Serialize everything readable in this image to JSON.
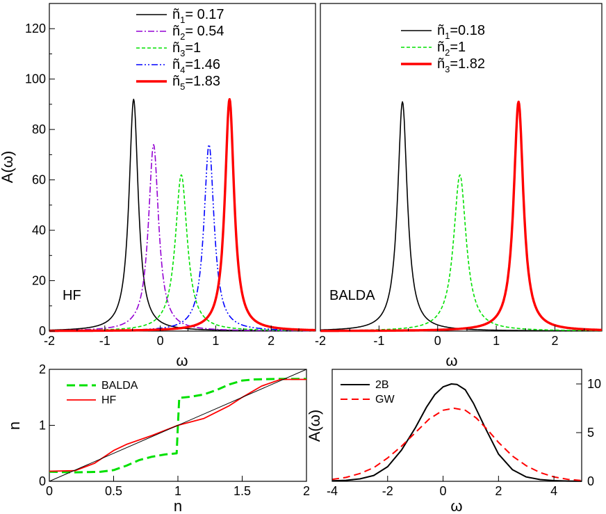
{
  "chart_data": [
    {
      "id": "hf",
      "type": "line",
      "panel_label": "HF",
      "xlabel": "ω",
      "ylabel": "A(ω)",
      "xlim": [
        -2,
        2.8
      ],
      "ylim": [
        0,
        130
      ],
      "xticks": [
        "-2",
        "-1",
        "0",
        "1",
        "2"
      ],
      "yticks": [
        "0",
        "20",
        "40",
        "60",
        "80",
        "100",
        "120"
      ],
      "series": [
        {
          "name": "ñ1= 0.17",
          "base": "ñ",
          "sub": "1",
          "rest": "= 0.17",
          "color": "#000000",
          "dash": "",
          "width": 1.6,
          "peaks": [
            {
              "x0": -0.48,
              "amp": 92,
              "g": 0.1
            }
          ]
        },
        {
          "name": "ñ2= 0.54",
          "base": "ñ",
          "sub": "2",
          "rest": "= 0.54",
          "color": "#9400d3",
          "dash": "9,3,2,3",
          "width": 1.6,
          "peaks": [
            {
              "x0": -0.12,
              "amp": 74,
              "g": 0.11
            }
          ]
        },
        {
          "name": "ñ3=1",
          "base": "ñ",
          "sub": "3",
          "rest": "=1",
          "color": "#00e000",
          "dash": "5,3",
          "width": 1.6,
          "peaks": [
            {
              "x0": 0.38,
              "amp": 62,
              "g": 0.13
            }
          ]
        },
        {
          "name": "ñ4=1.46",
          "base": "ñ",
          "sub": "4",
          "rest": "=1.46",
          "color": "#0000ff",
          "dash": "9,3,2,3,2,3",
          "width": 1.6,
          "peaks": [
            {
              "x0": 0.88,
              "amp": 74,
              "g": 0.11
            }
          ]
        },
        {
          "name": "ñ5=1.83",
          "base": "ñ",
          "sub": "5",
          "rest": "=1.83",
          "color": "#ff0000",
          "dash": "",
          "width": 3.4,
          "peaks": [
            {
              "x0": 1.25,
              "amp": 92,
              "g": 0.1
            }
          ]
        }
      ]
    },
    {
      "id": "balda",
      "type": "line",
      "panel_label": "BALDA",
      "xlabel": "ω",
      "xlim": [
        -2,
        2.8
      ],
      "ylim": [
        0,
        130
      ],
      "xticks": [
        "-2",
        "-1",
        "0",
        "1",
        "2"
      ],
      "series": [
        {
          "name": "ñ1=0.18",
          "base": "ñ",
          "sub": "1",
          "rest": "=0.18",
          "color": "#000000",
          "dash": "",
          "width": 1.6,
          "peaks": [
            {
              "x0": -0.6,
              "amp": 91,
              "g": 0.1
            }
          ]
        },
        {
          "name": "ñ2=1",
          "base": "ñ",
          "sub": "2",
          "rest": "=1",
          "color": "#00e000",
          "dash": "5,3",
          "width": 1.6,
          "peaks": [
            {
              "x0": 0.38,
              "amp": 62,
              "g": 0.13
            }
          ]
        },
        {
          "name": "ñ3=1.82",
          "base": "ñ",
          "sub": "3",
          "rest": "=1.82",
          "color": "#ff0000",
          "dash": "",
          "width": 3.4,
          "peaks": [
            {
              "x0": 1.38,
              "amp": 91,
              "g": 0.1
            }
          ]
        }
      ]
    },
    {
      "id": "density",
      "type": "line",
      "xlabel": "n",
      "ylabel": "n",
      "xlim": [
        0,
        2
      ],
      "ylim": [
        0,
        2
      ],
      "xticks": [
        "0",
        "0.5",
        "1",
        "1.5",
        "2"
      ],
      "yticks": [
        "0",
        "1",
        "2"
      ],
      "series": [
        {
          "name": "BALDA",
          "color": "#00e000",
          "dash": "12,6",
          "width": 3,
          "x": [
            0,
            0.2,
            0.4,
            0.5,
            0.6,
            0.7,
            0.8,
            0.9,
            0.99,
            1.0,
            1.01,
            1.1,
            1.2,
            1.3,
            1.4,
            1.5,
            1.6,
            1.8,
            2.0
          ],
          "y": [
            0.17,
            0.16,
            0.17,
            0.2,
            0.28,
            0.38,
            0.44,
            0.48,
            0.5,
            1.0,
            1.49,
            1.51,
            1.55,
            1.63,
            1.73,
            1.8,
            1.82,
            1.83,
            1.83
          ]
        },
        {
          "name": "HF",
          "color": "#ff0000",
          "dash": "",
          "width": 1.8,
          "x": [
            0,
            0.2,
            0.35,
            0.5,
            0.6,
            0.8,
            1.0,
            1.2,
            1.4,
            1.5,
            1.65,
            1.8,
            2.0
          ],
          "y": [
            0.18,
            0.19,
            0.32,
            0.55,
            0.66,
            0.82,
            1.0,
            1.12,
            1.35,
            1.5,
            1.7,
            1.82,
            1.82
          ]
        },
        {
          "name": "reference",
          "color": "#000000",
          "dash": "",
          "width": 1,
          "x": [
            0,
            2
          ],
          "y": [
            0,
            2
          ]
        }
      ]
    },
    {
      "id": "2b-gw",
      "type": "line",
      "xlabel": "ω",
      "ylabel": "A(ω)",
      "xlim": [
        -4,
        5
      ],
      "ylim": [
        0,
        11.5
      ],
      "xticks": [
        "-4",
        "-2",
        "0",
        "2",
        "4"
      ],
      "yticks": [
        "0",
        "5",
        "10"
      ],
      "series": [
        {
          "name": "2B",
          "color": "#000000",
          "dash": "",
          "width": 2,
          "x": [
            -4,
            -3.5,
            -3,
            -2.5,
            -2,
            -1.5,
            -1,
            -0.6,
            -0.3,
            0,
            0.3,
            0.5,
            0.8,
            1.1,
            1.5,
            2,
            2.5,
            3,
            3.5,
            4,
            4.5,
            5
          ],
          "y": [
            0.05,
            0.1,
            0.25,
            0.6,
            1.5,
            3.2,
            5.5,
            7.6,
            8.9,
            9.7,
            10.0,
            9.95,
            9.4,
            8.0,
            5.6,
            2.8,
            1.2,
            0.45,
            0.18,
            0.07,
            0.03,
            0.01
          ]
        },
        {
          "name": "GW",
          "color": "#ff0000",
          "dash": "10,6",
          "width": 2,
          "x": [
            -4,
            -3.5,
            -3,
            -2.5,
            -2,
            -1.5,
            -1,
            -0.5,
            0,
            0.4,
            0.8,
            1.2,
            1.6,
            2,
            2.5,
            3,
            3.5,
            4,
            4.5,
            5
          ],
          "y": [
            0.2,
            0.4,
            0.8,
            1.4,
            2.4,
            3.6,
            5.0,
            6.4,
            7.3,
            7.5,
            7.3,
            6.5,
            5.3,
            4.0,
            2.6,
            1.6,
            0.9,
            0.45,
            0.2,
            0.08
          ]
        }
      ]
    }
  ]
}
